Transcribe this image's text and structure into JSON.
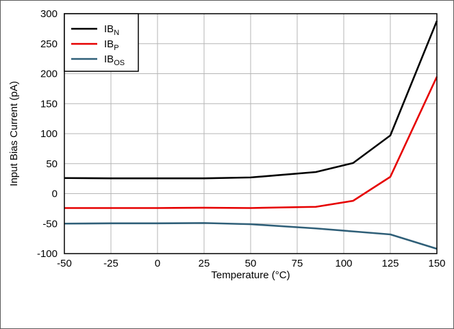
{
  "chart_data": {
    "type": "line",
    "title": "",
    "xlabel": "Temperature (°C)",
    "ylabel": "Input Bias Current (pA)",
    "xlim": [
      -50,
      150
    ],
    "ylim": [
      -100,
      300
    ],
    "xticks": [
      -50,
      -25,
      0,
      25,
      50,
      75,
      100,
      125,
      150
    ],
    "yticks": [
      -100,
      -50,
      0,
      50,
      100,
      150,
      200,
      250,
      300
    ],
    "xtick_labels": [
      "-50",
      "-25",
      "0",
      "25",
      "50",
      "75",
      "100",
      "125",
      "150"
    ],
    "ytick_labels": [
      "-100",
      "-50",
      "0",
      "50",
      "100",
      "150",
      "200",
      "250",
      "300"
    ],
    "grid": true,
    "legend_position": "top-left",
    "series": [
      {
        "name": "IB",
        "subscript": "N",
        "color": "#000000",
        "x": [
          -50,
          -25,
          0,
          25,
          50,
          85,
          105,
          125,
          150
        ],
        "y": [
          26,
          25.5,
          25.5,
          25.5,
          27,
          36,
          51,
          97,
          288
        ]
      },
      {
        "name": "IB",
        "subscript": "P",
        "color": "#e60000",
        "x": [
          -50,
          -25,
          0,
          25,
          50,
          85,
          105,
          125,
          150
        ],
        "y": [
          -24,
          -24,
          -24,
          -23.5,
          -24,
          -22,
          -12,
          28,
          195
        ]
      },
      {
        "name": "IB",
        "subscript": "OS",
        "color": "#2f5f78",
        "x": [
          -50,
          -25,
          0,
          25,
          50,
          85,
          105,
          125,
          150
        ],
        "y": [
          -50,
          -49.5,
          -49.5,
          -49,
          -51,
          -58,
          -63,
          -68,
          -92
        ]
      }
    ]
  }
}
